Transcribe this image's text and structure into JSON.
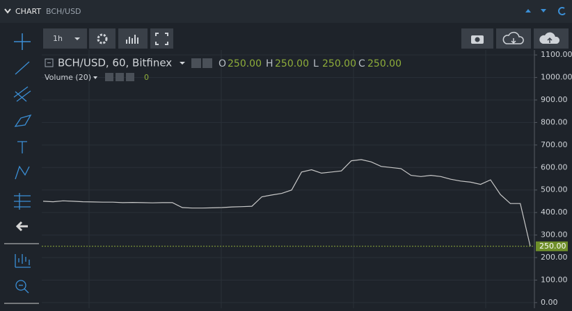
{
  "header": {
    "title": "CHART",
    "symbol": "BCH/USD"
  },
  "toolbar": {
    "interval": "1h"
  },
  "chart_data": {
    "type": "line",
    "title": "BCH/USD, 60, Bitfinex",
    "ohlc": [
      {
        "key": "O",
        "value": "250.00"
      },
      {
        "key": "H",
        "value": "250.00"
      },
      {
        "key": "L",
        "value": "250.00"
      },
      {
        "key": "C",
        "value": "250.00"
      }
    ],
    "indicator": "Volume (20)",
    "indicator_value": 0,
    "values": [
      450,
      448,
      452,
      450,
      448,
      447,
      446,
      446,
      444,
      445,
      444,
      443,
      444,
      444,
      422,
      420,
      420,
      421,
      422,
      425,
      426,
      428,
      470,
      478,
      485,
      500,
      580,
      590,
      575,
      580,
      585,
      630,
      635,
      625,
      605,
      600,
      595,
      565,
      560,
      565,
      560,
      548,
      540,
      535,
      525,
      545,
      480,
      440,
      440,
      250
    ],
    "color": "#c9c9c9",
    "last": {
      "value": 250,
      "label": "250.00"
    },
    "ylim": [
      -25,
      1122
    ],
    "yticks": [
      {
        "value": 0,
        "label": "0.00"
      },
      {
        "value": 100,
        "label": "100.00"
      },
      {
        "value": 200,
        "label": "200.00"
      },
      {
        "value": 300,
        "label": "300.00"
      },
      {
        "value": 400,
        "label": "400.00"
      },
      {
        "value": 500,
        "label": "500.00"
      },
      {
        "value": 600,
        "label": "600.00"
      },
      {
        "value": 700,
        "label": "700.00"
      },
      {
        "value": 800,
        "label": "800.00"
      },
      {
        "value": 900,
        "label": "900.00"
      },
      {
        "value": 1000,
        "label": "1000.00"
      },
      {
        "value": 1100,
        "label": "1100.00"
      }
    ],
    "grid": true
  }
}
